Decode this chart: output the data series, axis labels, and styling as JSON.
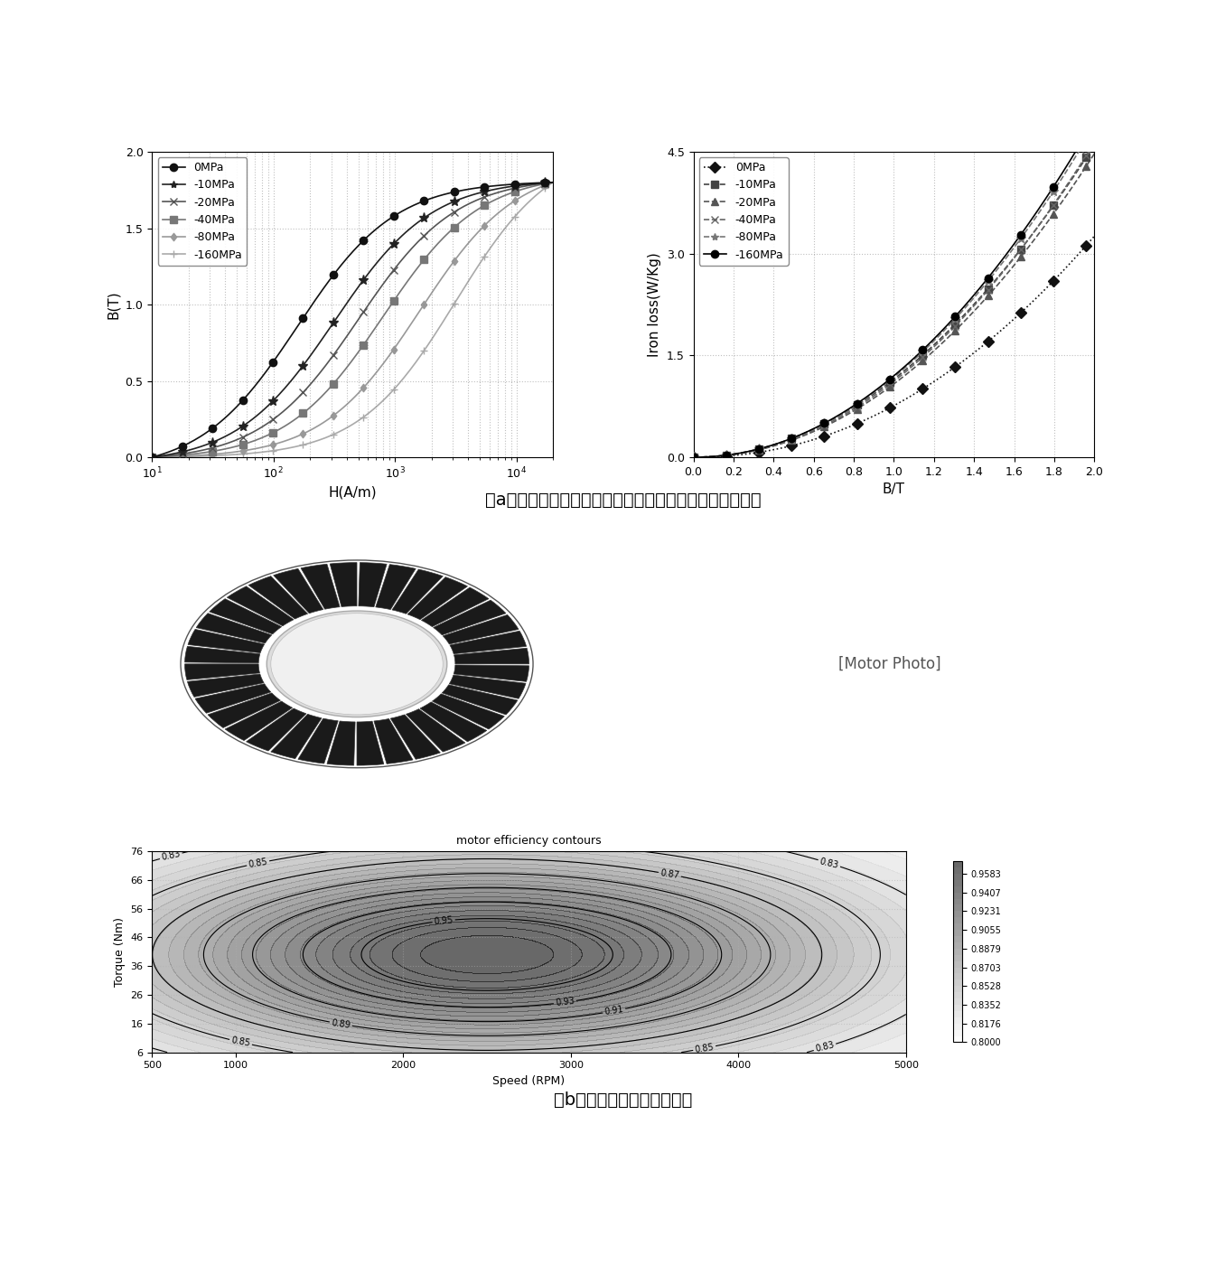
{
  "title_a": "（a）不同应力下的磁感变化与不同应力下的铁耗变化曲线",
  "title_b": "（b）中科院电工所非晶电机",
  "bh_labels": [
    "0MPa",
    "-10MPa",
    "-20MPa",
    "-40MPa",
    "-80MPa",
    "-160MPa"
  ],
  "iron_labels": [
    "0MPa",
    "-10MPa",
    "-20MPa",
    "-40MPa",
    "-80MPa",
    "-160MPa"
  ],
  "bh_colors": [
    "#000000",
    "#333333",
    "#555555",
    "#777777",
    "#999999",
    "#bbbbbb"
  ],
  "iron_colors": [
    "#000000",
    "#333333",
    "#555555",
    "#777777",
    "#999999",
    "#000000"
  ],
  "bh_xlabel": "H(A/m)",
  "bh_ylabel": "B(T)",
  "iron_xlabel": "B/T",
  "iron_ylabel": "Iron loss(W/Kg)",
  "bh_ylim": [
    0,
    2.0
  ],
  "iron_ylim": [
    0,
    4.5
  ],
  "iron_xlim": [
    0,
    2.0
  ],
  "background_color": "#ffffff"
}
